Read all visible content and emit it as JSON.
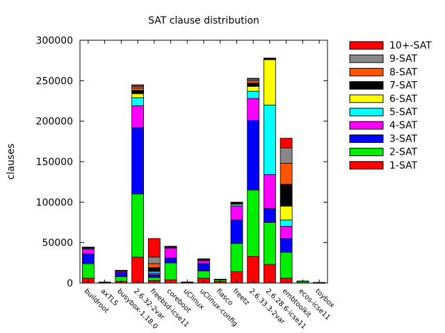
{
  "chart_data": {
    "type": "bar",
    "stacked": true,
    "title": "SAT clause distribution",
    "xlabel": "",
    "ylabel": "clauses",
    "ylim": [
      0,
      300000
    ],
    "yticks": [
      0,
      50000,
      100000,
      150000,
      200000,
      250000,
      300000
    ],
    "grid": false,
    "legend_position": "right",
    "categories": [
      "buildroot",
      "axTLS",
      "busybox-1.18.0",
      "2.6.32-2var",
      "freebsd-icse11",
      "coreboot",
      "uClinux",
      "uClinux-config",
      "fiasco",
      "freetz",
      "2.6.33.3-2var",
      "2.6.28.6-icse11",
      "embtoolkit",
      "ecos-icse11",
      "toybox"
    ],
    "series": [
      {
        "name": "1-SAT",
        "color": "#ff0000",
        "values": [
          6000,
          300,
          2000,
          32000,
          3000,
          4000,
          300,
          6000,
          2000,
          14000,
          33000,
          23000,
          6000,
          500,
          200
        ]
      },
      {
        "name": "2-SAT",
        "color": "#00ee00",
        "values": [
          18000,
          500,
          6000,
          78000,
          4000,
          21000,
          700,
          9000,
          2000,
          35000,
          82000,
          52000,
          32000,
          1500,
          300
        ]
      },
      {
        "name": "3-SAT",
        "color": "#0000ff",
        "values": [
          12000,
          300,
          5000,
          82000,
          3000,
          6000,
          300,
          9000,
          500,
          29000,
          86000,
          17000,
          17000,
          400,
          200
        ]
      },
      {
        "name": "4-SAT",
        "color": "#ff00ff",
        "values": [
          6000,
          100,
          1500,
          27000,
          2000,
          12000,
          100,
          3500,
          200,
          17000,
          27000,
          42000,
          15000,
          100,
          50
        ]
      },
      {
        "name": "5-SAT",
        "color": "#00ffff",
        "values": [
          1000,
          0,
          500,
          10000,
          2000,
          1000,
          0,
          1000,
          100,
          2000,
          9000,
          86000,
          8000,
          0,
          0
        ]
      },
      {
        "name": "6-SAT",
        "color": "#ffff00",
        "values": [
          500,
          0,
          200,
          5000,
          1000,
          500,
          0,
          500,
          0,
          1000,
          6000,
          56000,
          17000,
          0,
          0
        ]
      },
      {
        "name": "7-SAT",
        "color": "#000000",
        "values": [
          300,
          0,
          200,
          4000,
          4000,
          300,
          0,
          300,
          0,
          500,
          4000,
          1000,
          27000,
          0,
          0
        ]
      },
      {
        "name": "8-SAT",
        "color": "#ff5500",
        "values": [
          200,
          0,
          100,
          3000,
          5000,
          200,
          0,
          200,
          0,
          500,
          3000,
          500,
          26000,
          0,
          0
        ]
      },
      {
        "name": "9-SAT",
        "color": "#888888",
        "values": [
          200,
          0,
          100,
          2000,
          8000,
          200,
          0,
          200,
          0,
          500,
          2000,
          300,
          19000,
          0,
          0
        ]
      },
      {
        "name": "10+-SAT",
        "color": "#ff0000",
        "values": [
          300,
          0,
          100,
          2000,
          23000,
          300,
          0,
          300,
          0,
          500,
          1000,
          200,
          12000,
          0,
          0
        ]
      }
    ]
  }
}
